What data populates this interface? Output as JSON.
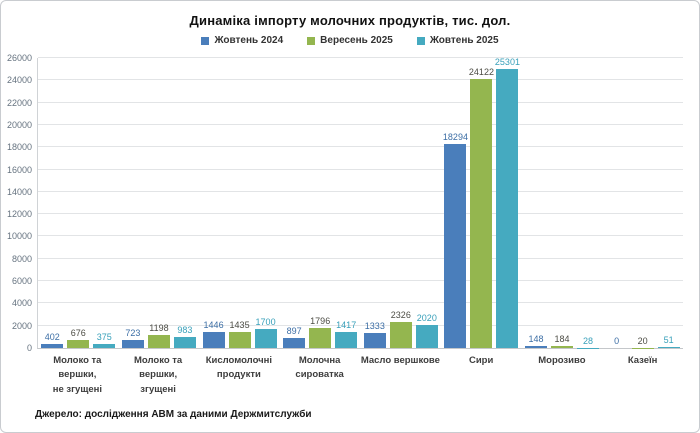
{
  "chart": {
    "title": "Динаміка імпорту молочних продуктів, тис. дол.",
    "source": "Джерело: дослідження АВМ за даними Держмитслужби"
  },
  "chart_data": {
    "type": "bar",
    "title": "Динаміка імпорту молочних продуктів, тис. дол.",
    "categories": [
      "Молоко та вершки,\nне згущені",
      "Молоко та вершки,\nзгущені",
      "Кисломолочні\nпродукти",
      "Молочна\nсироватка",
      "Масло вершкове",
      "Сири",
      "Морозиво",
      "Казеїн"
    ],
    "series": [
      {
        "name": "Жовтень 2024",
        "color": "#4a7ebb",
        "label_color": "#3c6ea5",
        "values": [
          402,
          723,
          1446,
          897,
          1333,
          18294,
          148,
          0
        ]
      },
      {
        "name": "Вересень 2025",
        "color": "#94b64f",
        "label_color": "#4c4c44",
        "values": [
          676,
          1198,
          1435,
          1796,
          2326,
          24122,
          184,
          20
        ]
      },
      {
        "name": "Жовтень 2025",
        "color": "#45aac0",
        "label_color": "#38a0ba",
        "values": [
          375,
          983,
          1700,
          1417,
          2020,
          25301,
          28,
          51
        ]
      }
    ],
    "ylim": [
      0,
      26000
    ],
    "ytick_step": 2000,
    "grid": "horizontal",
    "legend_position": "top",
    "xlabel": "",
    "ylabel": "",
    "source": "Джерело: дослідження АВМ за даними Держмитслужби"
  }
}
